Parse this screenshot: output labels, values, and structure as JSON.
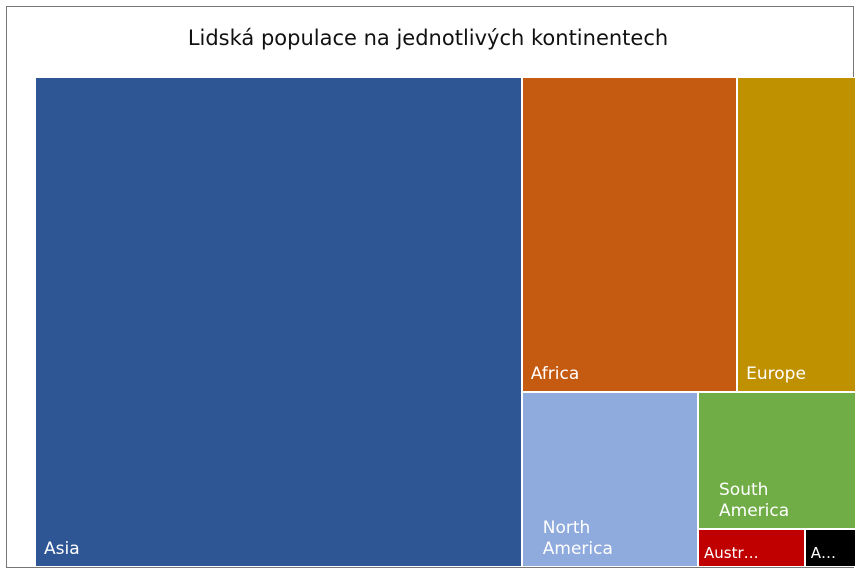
{
  "chart_data": {
    "type": "treemap",
    "title": "Lidská populace  na jednotlivých kontinentech",
    "categories": [
      "Asia",
      "Africa",
      "Europe",
      "North America",
      "South America",
      "Austr…",
      "A…"
    ],
    "values": [
      4400,
      1250,
      690,
      570,
      400,
      75,
      36
    ],
    "colors": [
      "#2e5594",
      "#c55a11",
      "#bf9000",
      "#8faadc",
      "#70ad47",
      "#c00000",
      "#000000"
    ]
  }
}
